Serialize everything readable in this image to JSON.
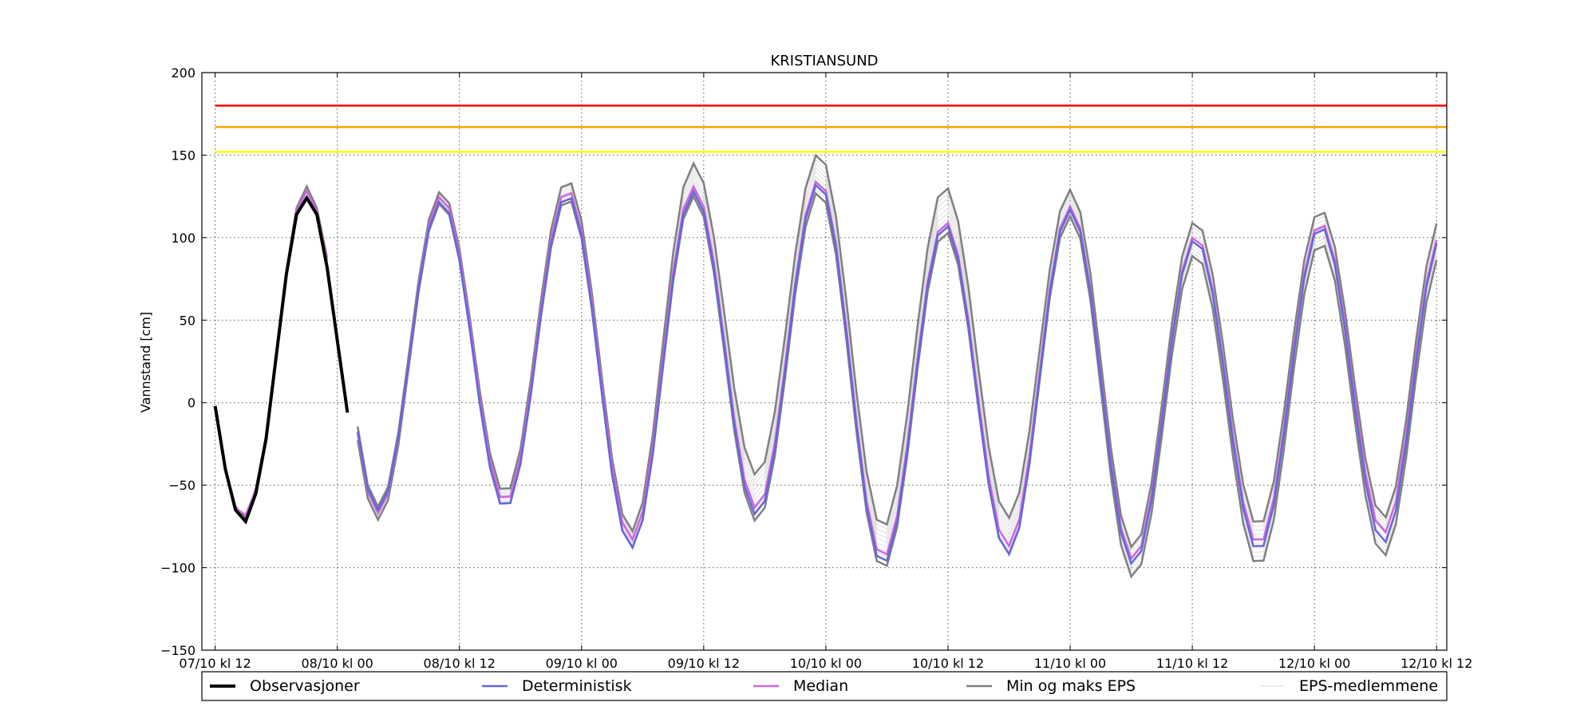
{
  "chart_data": {
    "type": "line",
    "title": "KRISTIANSUND",
    "xlabel": "",
    "ylabel": "Vannstand [cm]",
    "xlim": [
      0,
      120.5
    ],
    "ylim": [
      -150,
      200
    ],
    "yticks": [
      -150,
      -100,
      -50,
      0,
      50,
      100,
      150,
      200
    ],
    "xticks": [
      {
        "t": 0,
        "label": "07/10 kl 12"
      },
      {
        "t": 12,
        "label": "08/10 kl 00"
      },
      {
        "t": 24,
        "label": "08/10 kl 12"
      },
      {
        "t": 36,
        "label": "09/10 kl 00"
      },
      {
        "t": 48,
        "label": "09/10 kl 12"
      },
      {
        "t": 60,
        "label": "10/10 kl 00"
      },
      {
        "t": 72,
        "label": "10/10 kl 12"
      },
      {
        "t": 84,
        "label": "11/10 kl 00"
      },
      {
        "t": 96,
        "label": "11/10 kl 12"
      },
      {
        "t": 108,
        "label": "12/10 kl 00"
      },
      {
        "t": 120,
        "label": "12/10 kl 12"
      }
    ],
    "grid": true,
    "legend_position": "bottom",
    "thresholds": [
      {
        "value": 180,
        "color": "#ff0000"
      },
      {
        "value": 167,
        "color": "#ffa500"
      },
      {
        "value": 152,
        "color": "#ffff00"
      }
    ],
    "extrema": [
      {
        "t": 0,
        "det": -2,
        "med": -2,
        "min": -2,
        "max": -2
      },
      {
        "t": 3.7,
        "det": -65,
        "med": -66,
        "min": -68,
        "max": -63
      },
      {
        "t": 10,
        "det": 125,
        "med": 127,
        "min": 122,
        "max": 131
      },
      {
        "t": 16,
        "det": -65,
        "med": -67,
        "min": -71,
        "max": -63
      },
      {
        "t": 22.2,
        "det": 122,
        "med": 125,
        "min": 121,
        "max": 128
      },
      {
        "t": 28.5,
        "det": -64,
        "med": -60,
        "min": -64,
        "max": -55
      },
      {
        "t": 34.6,
        "det": 126,
        "med": 129,
        "min": 124,
        "max": 135
      },
      {
        "t": 40.9,
        "det": -88,
        "med": -83,
        "min": -88,
        "max": -78
      },
      {
        "t": 47,
        "det": 128,
        "med": 131,
        "min": 125,
        "max": 145
      },
      {
        "t": 53.2,
        "det": -68,
        "med": -64,
        "min": -72,
        "max": -44
      },
      {
        "t": 59.3,
        "det": 133,
        "med": 135,
        "min": 128,
        "max": 151
      },
      {
        "t": 65.6,
        "det": -98,
        "med": -94,
        "min": -101,
        "max": -76
      },
      {
        "t": 71.7,
        "det": 108,
        "med": 110,
        "min": 104,
        "max": 131
      },
      {
        "t": 77.9,
        "det": -92,
        "med": -87,
        "min": -92,
        "max": -70
      },
      {
        "t": 84,
        "det": 117,
        "med": 119,
        "min": 113,
        "max": 129
      },
      {
        "t": 90.2,
        "det": -98,
        "med": -95,
        "min": -106,
        "max": -88
      },
      {
        "t": 96.3,
        "det": 99,
        "med": 101,
        "min": 90,
        "max": 110
      },
      {
        "t": 102.5,
        "det": -90,
        "med": -86,
        "min": -99,
        "max": -75
      },
      {
        "t": 108.6,
        "det": 107,
        "med": 109,
        "min": 97,
        "max": 117
      },
      {
        "t": 114.8,
        "det": -85,
        "med": -79,
        "min": -93,
        "max": -70
      },
      {
        "t": 120.5,
        "det": 100,
        "med": 102,
        "min": 90,
        "max": 112
      }
    ],
    "series": [
      {
        "name": "Observasjoner",
        "color": "#000000",
        "x": [
          0,
          1,
          2,
          3,
          4,
          5,
          6,
          7,
          8,
          9,
          10,
          11,
          12,
          13
        ],
        "y": [
          -2,
          -40,
          -65,
          -72,
          -55,
          -22,
          28,
          78,
          114,
          124,
          114,
          82,
          38,
          -6
        ]
      },
      {
        "name": "Deterministisk",
        "color": "#6666dd"
      },
      {
        "name": "Median",
        "color": "#cc66dd"
      },
      {
        "name": "Min og maks EPS",
        "color": "#808080"
      },
      {
        "name": "EPS-medlemmene",
        "color": "#dddddd"
      }
    ]
  }
}
